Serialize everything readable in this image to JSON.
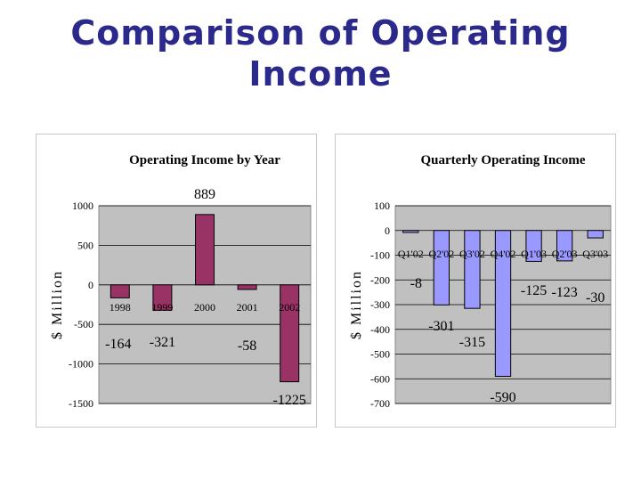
{
  "slide": {
    "title": "Comparison of Operating Income"
  },
  "colors": {
    "plot_bg": "#c0c0c0",
    "annual_bar": "#993366",
    "quarterly_bar": "#9999ff",
    "title": "#2b2a8c"
  },
  "chart_data": [
    {
      "type": "bar",
      "title": "Operating Income by Year",
      "ylabel": "$ Million",
      "categories": [
        "1998",
        "1999",
        "2000",
        "2001",
        "2002"
      ],
      "values": [
        -164,
        -321,
        889,
        -58,
        -1225
      ],
      "data_labels": [
        "-164",
        "-321",
        "889",
        "-58",
        "-1225"
      ],
      "ylim": [
        -1500,
        1000
      ],
      "yticks": [
        1000,
        500,
        0,
        -500,
        -1000,
        -1500
      ],
      "grid": true
    },
    {
      "type": "bar",
      "title": "Quarterly Operating Income",
      "ylabel": "$ Million",
      "categories": [
        "Q1'02",
        "Q2'02",
        "Q3'02",
        "Q4'02",
        "Q1'03",
        "Q2'03",
        "Q3'03"
      ],
      "values": [
        -8,
        -301,
        -315,
        -590,
        -125,
        -123,
        -30
      ],
      "data_labels": [
        "-8",
        "-301",
        "-315",
        "-590",
        "-125",
        "-123",
        "-30"
      ],
      "ylim": [
        -700,
        100
      ],
      "yticks": [
        100,
        0,
        -100,
        -200,
        -300,
        -400,
        -500,
        -600,
        -700
      ],
      "grid": true
    }
  ]
}
